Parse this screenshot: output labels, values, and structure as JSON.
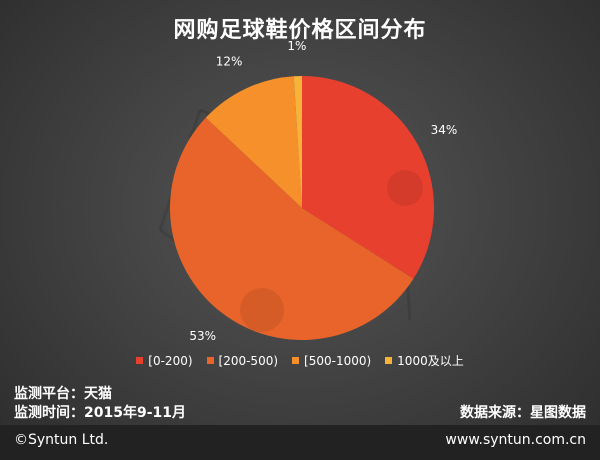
{
  "chart_data": {
    "type": "pie",
    "title": "网购足球鞋价格区间分布",
    "categories": [
      "[0-200)",
      "[200-500)",
      "[500-1000)",
      "1000及以上"
    ],
    "values": [
      34,
      53,
      12,
      1
    ],
    "labels": [
      "34%",
      "53%",
      "12%",
      "1%"
    ],
    "colors": [
      "#e8402f",
      "#e8642a",
      "#f5902a",
      "#f7b23a"
    ],
    "legend_position": "bottom"
  },
  "meta": {
    "platform": "监测平台：天猫",
    "period": "监测时间：2015年9-11月",
    "source": "数据来源：星图数据"
  },
  "footer": {
    "copyright": "©Syntun Ltd.",
    "website": "www.syntun.com.cn"
  }
}
